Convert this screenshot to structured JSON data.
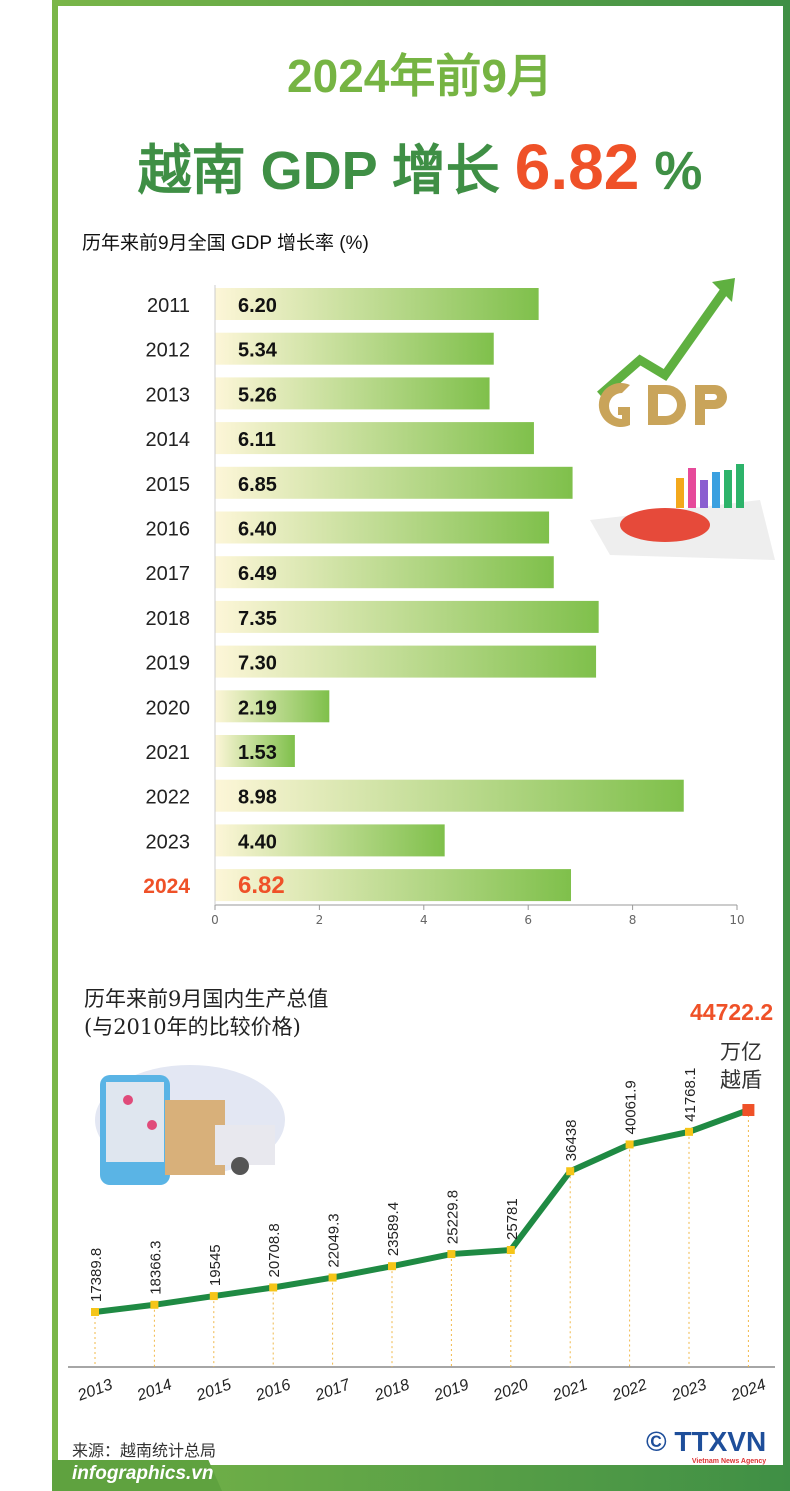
{
  "header": {
    "line1": "2024年前9月",
    "line2_prefix": "越南 GDP 增长",
    "line2_value": "6.82",
    "line2_suffix": "%"
  },
  "colors": {
    "green": "#3f8f45",
    "light_green": "#76b443",
    "orange": "#ef5128",
    "line": "#1f8a43",
    "marker": "#f5c518"
  },
  "chart_data": [
    {
      "type": "bar",
      "title": "历年来前9月全国 GDP 增长率 (%)",
      "orientation": "horizontal",
      "categories": [
        "2011",
        "2012",
        "2013",
        "2014",
        "2015",
        "2016",
        "2017",
        "2018",
        "2019",
        "2020",
        "2021",
        "2022",
        "2023",
        "2024"
      ],
      "values": [
        6.2,
        5.34,
        5.26,
        6.11,
        6.85,
        6.4,
        6.49,
        7.35,
        7.3,
        2.19,
        1.53,
        8.98,
        4.4,
        6.82
      ],
      "value_labels": [
        "6.20",
        "5.34",
        "5.26",
        "6.11",
        "6.85",
        "6.40",
        "6.49",
        "7.35",
        "7.30",
        "2.19",
        "1.53",
        "8.98",
        "4.40",
        "6.82"
      ],
      "highlight": "2024",
      "xlim": [
        0,
        10
      ],
      "xticks": [
        "0",
        "2",
        "4",
        "6",
        "8",
        "10"
      ]
    },
    {
      "type": "line",
      "title_line1": "历年来前9月国内生产总值",
      "title_line2": "(与2010年的比较价格)",
      "x": [
        "2013",
        "2014",
        "2015",
        "2016",
        "2017",
        "2018",
        "2019",
        "2020",
        "2021",
        "2022",
        "2023",
        "2024"
      ],
      "values": [
        17389.8,
        18366.3,
        19545,
        20708.8,
        22049.3,
        23589.4,
        25229.8,
        25781,
        36438,
        40061.9,
        41768.1,
        44722.2
      ],
      "value_labels": [
        "17389.8",
        "18366.3",
        "19545",
        "20708.8",
        "22049.3",
        "23589.4",
        "25229.8",
        "25781",
        "36438",
        "40061.9",
        "41768.1",
        "44722.2"
      ],
      "unit_line1": "万亿",
      "unit_line2": "越盾"
    }
  ],
  "footer": {
    "source": "来源：越南统计总局",
    "brand": "infographics.vn",
    "copyright": "©",
    "logo": "TTXVN",
    "logo_sub": "Vietnam News Agency"
  }
}
